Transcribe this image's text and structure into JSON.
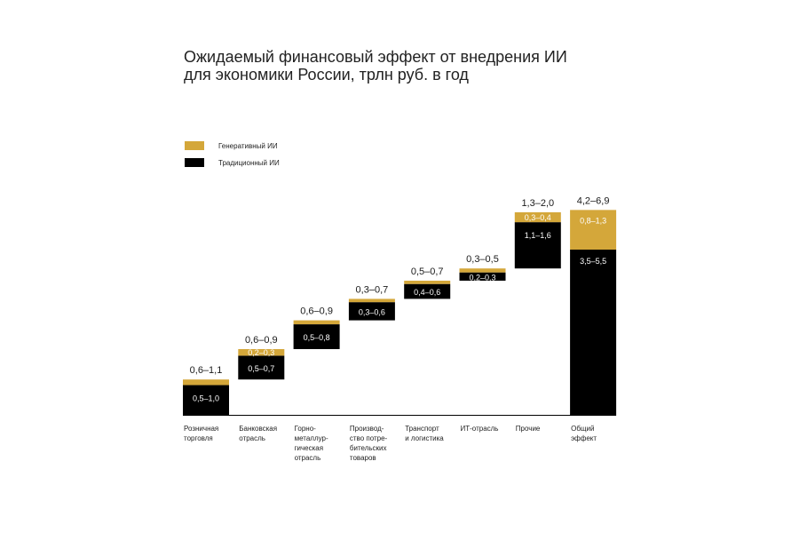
{
  "title": {
    "line1": "Ожидаемый финансовый эффект от внедрения ИИ",
    "line2": "для экономики России, трлн руб. в год"
  },
  "legend": [
    {
      "label": "Генеративный ИИ",
      "color": "#d4a73a"
    },
    {
      "label": "Традиционный ИИ",
      "color": "#000000"
    }
  ],
  "chart_data": {
    "type": "waterfall",
    "title": "Ожидаемый финансовый эффект от внедрения ИИ для экономики России, трлн руб. в год",
    "unit": "трлн руб. в год",
    "ylim": [
      0,
      7.0
    ],
    "categories": [
      [
        "Розничная",
        "торговля"
      ],
      [
        "Банковская",
        "отрасль"
      ],
      [
        "Горно-",
        "металлур-",
        "гическая",
        "отрасль"
      ],
      [
        "Производ-",
        "ство потре-",
        "бительских",
        "товаров"
      ],
      [
        "Транспорт",
        "и логистика"
      ],
      [
        "ИТ-отрасль"
      ],
      [
        "Прочие"
      ],
      [
        "Общий",
        "эффект"
      ]
    ],
    "bars": [
      {
        "total": "0,6–1,1",
        "traditional": 0.9,
        "generative": 0.17,
        "traditional_label": "0,5–1,0",
        "generative_label": ""
      },
      {
        "total": "0,6–0,9",
        "traditional": 0.72,
        "generative": 0.2,
        "traditional_label": "0,5–0,7",
        "generative_label": "0,2–0,3"
      },
      {
        "total": "0,6–0,9",
        "traditional": 0.75,
        "generative": 0.12,
        "traditional_label": "0,5–0,8",
        "generative_label": ""
      },
      {
        "total": "0,3–0,7",
        "traditional": 0.55,
        "generative": 0.1,
        "traditional_label": "0,3–0,6",
        "generative_label": ""
      },
      {
        "total": "0,5–0,7",
        "traditional": 0.45,
        "generative": 0.1,
        "traditional_label": "0,4–0,6",
        "generative_label": ""
      },
      {
        "total": "0,3–0,5",
        "traditional": 0.25,
        "generative": 0.12,
        "traditional_label": "0,2–0,3",
        "generative_label": ""
      },
      {
        "total": "1,3–2,0",
        "traditional": 1.4,
        "generative": 0.3,
        "traditional_label": "1,1–1,6",
        "generative_label": "0,3–0,4"
      },
      {
        "total": "4,2–6,9",
        "traditional": 5.0,
        "generative": 1.2,
        "traditional_label": "3,5–5,5",
        "generative_label": "0,8–1,3",
        "is_total": true
      }
    ]
  }
}
